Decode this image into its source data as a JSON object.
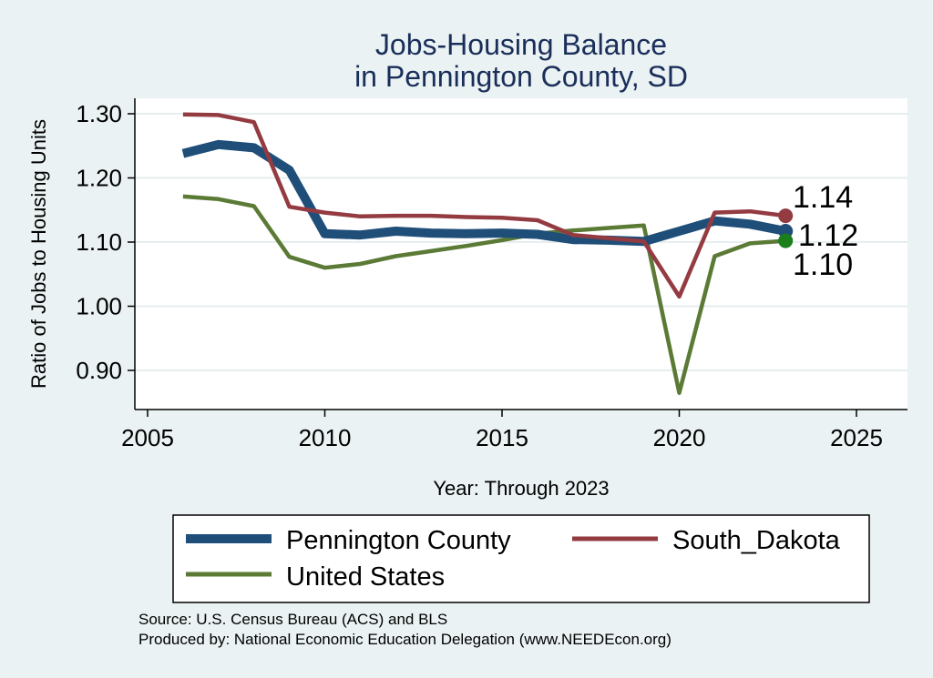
{
  "chart_data": {
    "type": "line",
    "title": [
      "Jobs-Housing Balance",
      "in Pennington County, SD"
    ],
    "xlabel": "Year: Through 2023",
    "ylabel": "Ratio of Jobs to Housing Units",
    "xlim": [
      2005,
      2026.5
    ],
    "ylim": [
      0.84,
      1.325
    ],
    "xticks": [
      2005,
      2010,
      2015,
      2020,
      2025
    ],
    "yticks": [
      0.9,
      1.0,
      1.1,
      1.2,
      1.3
    ],
    "ytick_labels": [
      "0.90",
      "1.00",
      "1.10",
      "1.20",
      "1.30"
    ],
    "grid": "horizontal",
    "legend_position": "bottom",
    "x": [
      2006,
      2007,
      2008,
      2009,
      2010,
      2011,
      2012,
      2013,
      2014,
      2015,
      2016,
      2017,
      2018,
      2019,
      2020,
      2021,
      2022,
      2023
    ],
    "series": [
      {
        "name": "Pennington County",
        "color": "#1f4e79",
        "width": "thick",
        "values": [
          1.238,
          1.252,
          1.247,
          1.212,
          1.113,
          1.111,
          1.117,
          1.114,
          1.113,
          1.114,
          1.112,
          1.104,
          1.103,
          1.101,
          1.117,
          1.133,
          1.128,
          1.117
        ],
        "end_label": "1.12",
        "marker_color": "#1f4e79"
      },
      {
        "name": "South_Dakota",
        "color": "#933b41",
        "width": "medium",
        "values": [
          1.299,
          1.298,
          1.287,
          1.155,
          1.146,
          1.14,
          1.141,
          1.141,
          1.139,
          1.138,
          1.134,
          1.111,
          1.106,
          1.101,
          1.015,
          1.146,
          1.148,
          1.141
        ],
        "end_label": "1.14",
        "marker_color": "#933b41"
      },
      {
        "name": "United States",
        "color": "#5a7a35",
        "width": "medium",
        "values": [
          1.171,
          1.167,
          1.156,
          1.077,
          1.06,
          1.066,
          1.078,
          1.086,
          1.094,
          1.103,
          1.113,
          1.118,
          1.122,
          1.126,
          0.865,
          1.078,
          1.098,
          1.102
        ],
        "end_label": "1.10",
        "marker_color": "#1a7f1a"
      }
    ]
  },
  "legend": {
    "items": [
      "Pennington County",
      "South_Dakota",
      "United States"
    ]
  },
  "source": {
    "line1": "Source: U.S. Census Bureau (ACS) and BLS",
    "line2": "Produced by: National Economic Education Delegation (www.NEEDEcon.org)"
  }
}
